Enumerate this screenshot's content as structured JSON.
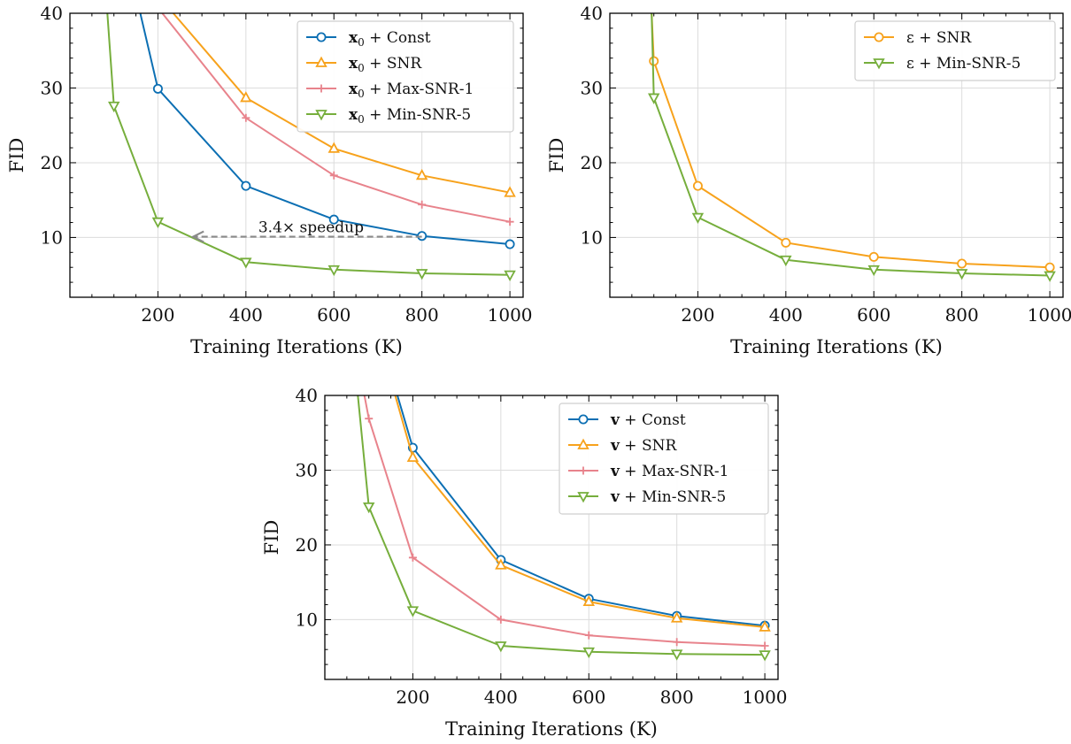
{
  "chart_data": [
    {
      "type": "line",
      "xlabel": "Training Iterations (K)",
      "ylabel": "FID",
      "xlim": [
        0,
        1030
      ],
      "ylim": [
        2,
        40
      ],
      "xticks": [
        "200",
        "400",
        "600",
        "800",
        "1000"
      ],
      "yticks": [
        "10",
        "20",
        "30",
        "40"
      ],
      "grid": true,
      "legend_position": "top-right",
      "series": [
        {
          "name": "x0 + Const",
          "name_bold": "x",
          "name_sub": "0",
          "name_rest": " + Const",
          "color": "#0c6fb3",
          "marker": "circle",
          "x": [
            160,
            200,
            400,
            600,
            800,
            1000
          ],
          "y": [
            40,
            29.9,
            16.9,
            12.4,
            10.2,
            9.1
          ]
        },
        {
          "name": "x0 + SNR",
          "name_bold": "x",
          "name_sub": "0",
          "name_rest": " + SNR",
          "color": "#f7a21c",
          "marker": "triangle-up",
          "x": [
            235,
            400,
            600,
            800,
            1000
          ],
          "y": [
            40,
            28.7,
            21.9,
            18.3,
            16.0
          ]
        },
        {
          "name": "x0 + Max-SNR-1",
          "name_bold": "x",
          "name_sub": "0",
          "name_rest": " + Max-SNR-1",
          "color": "#e8838c",
          "marker": "plus",
          "x": [
            210,
            400,
            600,
            800,
            1000
          ],
          "y": [
            40,
            26.0,
            18.3,
            14.4,
            12.1
          ]
        },
        {
          "name": "x0 + Min-SNR-5",
          "name_bold": "x",
          "name_sub": "0",
          "name_rest": " + Min-SNR-5",
          "color": "#76ae3c",
          "marker": "triangle-down",
          "x": [
            85,
            100,
            200,
            400,
            600,
            800,
            1000
          ],
          "y": [
            40,
            27.6,
            12.1,
            6.7,
            5.7,
            5.2,
            5.0
          ]
        }
      ],
      "annotation": {
        "text": "3.4× speedup",
        "from": [
          800,
          10.1
        ],
        "to": [
          280,
          10.1
        ]
      }
    },
    {
      "type": "line",
      "xlabel": "Training Iterations (K)",
      "ylabel": "FID",
      "xlim": [
        0,
        1030
      ],
      "ylim": [
        2,
        40
      ],
      "xticks": [
        "200",
        "400",
        "600",
        "800",
        "1000"
      ],
      "yticks": [
        "10",
        "20",
        "30",
        "40"
      ],
      "grid": true,
      "legend_position": "top-right",
      "series": [
        {
          "name": "ε + SNR",
          "name_bold": "",
          "name_sub": "",
          "name_rest": "ε + SNR",
          "color": "#f7a21c",
          "marker": "circle",
          "x": [
            95,
            100,
            200,
            400,
            600,
            800,
            1000
          ],
          "y": [
            40,
            33.6,
            16.9,
            9.3,
            7.4,
            6.5,
            6.0
          ]
        },
        {
          "name": "ε + Min-SNR-5",
          "name_bold": "",
          "name_sub": "",
          "name_rest": "ε + Min-SNR-5",
          "color": "#76ae3c",
          "marker": "triangle-down",
          "x": [
            95,
            100,
            200,
            400,
            600,
            800,
            1000
          ],
          "y": [
            40,
            28.7,
            12.7,
            7.0,
            5.7,
            5.2,
            4.9
          ]
        }
      ]
    },
    {
      "type": "line",
      "xlabel": "Training Iterations (K)",
      "ylabel": "FID",
      "xlim": [
        0,
        1030
      ],
      "ylim": [
        2,
        40
      ],
      "xticks": [
        "200",
        "400",
        "600",
        "800",
        "1000"
      ],
      "yticks": [
        "10",
        "20",
        "30",
        "40"
      ],
      "grid": true,
      "legend_position": "top-right",
      "series": [
        {
          "name": "v + Const",
          "name_bold": "v",
          "name_sub": "",
          "name_rest": " + Const",
          "color": "#0c6fb3",
          "marker": "circle",
          "x": [
            165,
            200,
            400,
            600,
            800,
            1000
          ],
          "y": [
            40,
            33.0,
            18.0,
            12.8,
            10.5,
            9.2
          ]
        },
        {
          "name": "v + SNR",
          "name_bold": "v",
          "name_sub": "",
          "name_rest": " + SNR",
          "color": "#f7a21c",
          "marker": "triangle-up",
          "x": [
            160,
            200,
            400,
            600,
            800,
            1000
          ],
          "y": [
            40,
            31.7,
            17.3,
            12.4,
            10.2,
            9.0
          ]
        },
        {
          "name": "v + Max-SNR-1",
          "name_bold": "v",
          "name_sub": "",
          "name_rest": " + Max-SNR-1",
          "color": "#e8838c",
          "marker": "plus",
          "x": [
            90,
            100,
            200,
            400,
            600,
            800,
            1000
          ],
          "y": [
            40,
            36.9,
            18.3,
            10.0,
            7.9,
            7.0,
            6.5
          ]
        },
        {
          "name": "v + Min-SNR-5",
          "name_bold": "v",
          "name_sub": "",
          "name_rest": " + Min-SNR-5",
          "color": "#76ae3c",
          "marker": "triangle-down",
          "x": [
            75,
            100,
            200,
            400,
            600,
            800,
            1000
          ],
          "y": [
            40,
            25.1,
            11.2,
            6.5,
            5.7,
            5.4,
            5.3
          ]
        }
      ]
    }
  ]
}
